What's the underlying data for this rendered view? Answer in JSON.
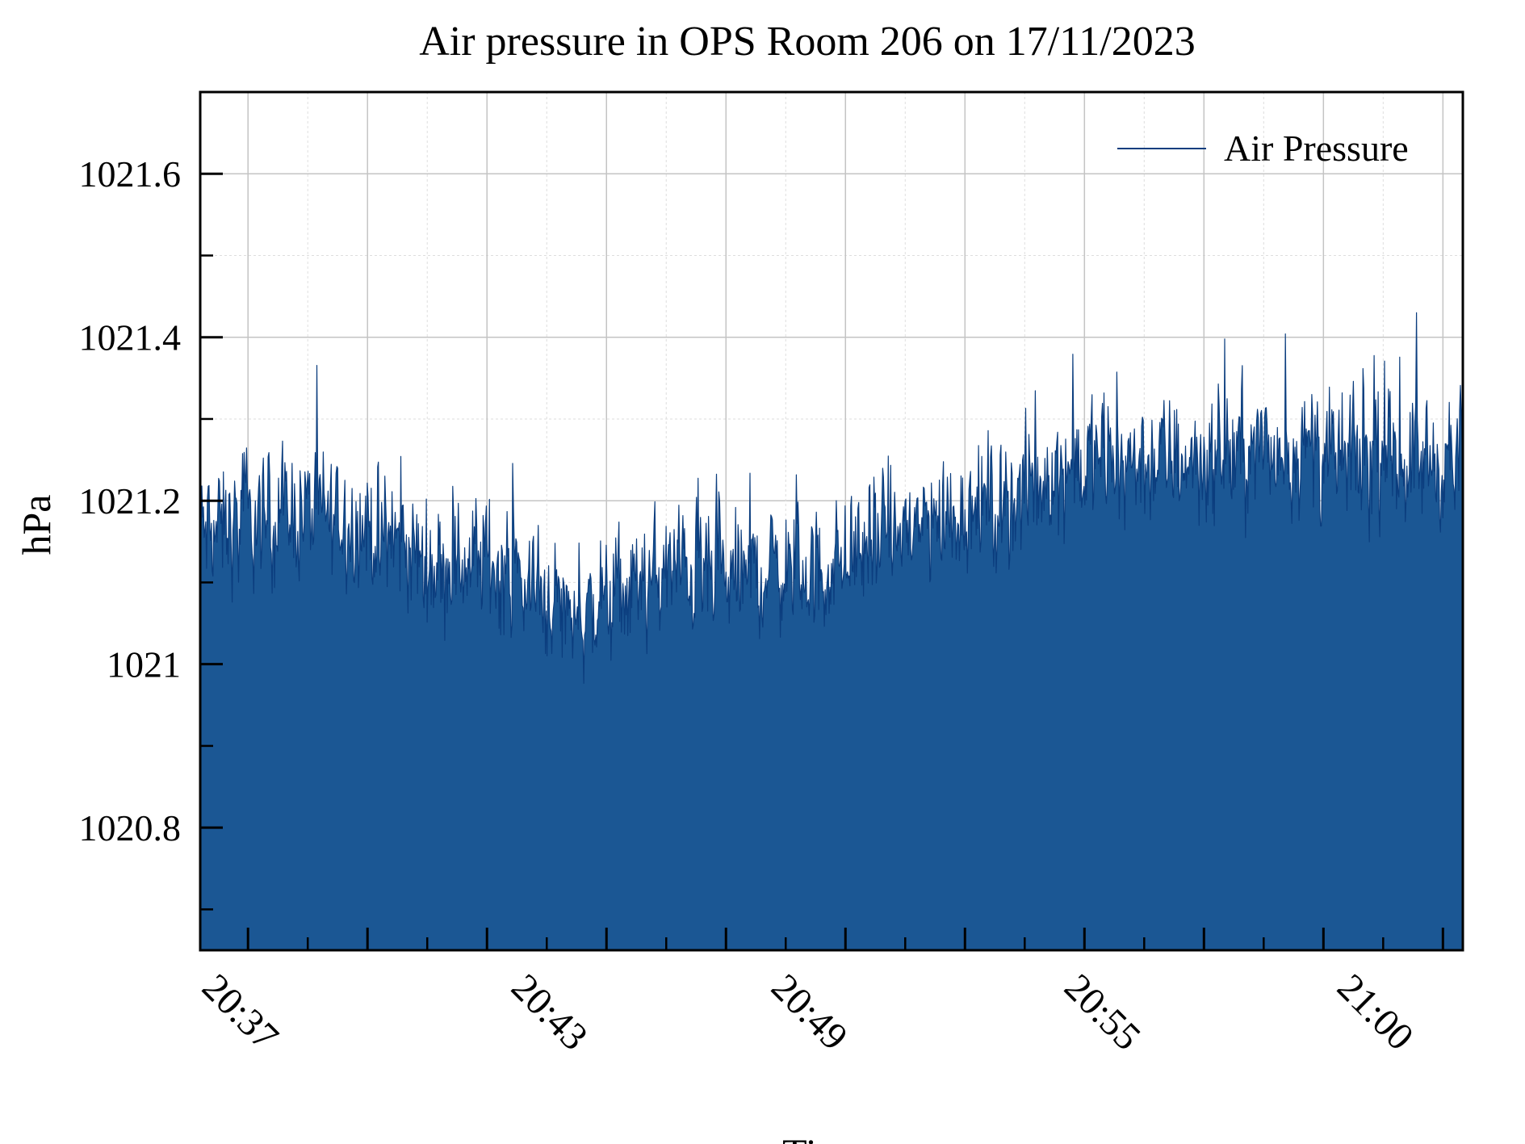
{
  "chart_data": {
    "type": "area",
    "title": "Air pressure in OPS Room 206 on 17/11/2023",
    "xlabel": "Time",
    "ylabel": "hPa",
    "legend": {
      "position": "top-right",
      "entries": [
        "Air Pressure"
      ]
    },
    "grid": true,
    "colors": {
      "series": "#0b3d7e",
      "fill": "#1b5794"
    },
    "x_range": [
      "20:36:00",
      "21:02:25"
    ],
    "ylim": [
      1020.65,
      1021.7
    ],
    "xticks": [
      "20:37",
      "20:43",
      "20:49",
      "20:55",
      "21:00"
    ],
    "yticks": [
      {
        "value": 1020.8,
        "label": "1020.8"
      },
      {
        "value": 1021.0,
        "label": "1021"
      },
      {
        "value": 1021.2,
        "label": "1021.2"
      },
      {
        "value": 1021.4,
        "label": "1021.4"
      },
      {
        "value": 1021.6,
        "label": "1021.6"
      }
    ],
    "series": [
      {
        "name": "Air Pressure",
        "x": [
          "20:36:00",
          "20:37:00",
          "20:38:00",
          "20:39:00",
          "20:40:00",
          "20:41:00",
          "20:42:00",
          "20:43:00",
          "20:44:00",
          "20:45:00",
          "20:46:00",
          "20:47:00",
          "20:48:00",
          "20:49:00",
          "20:50:00",
          "20:51:00",
          "20:52:00",
          "20:53:00",
          "20:54:00",
          "20:55:00",
          "20:56:00",
          "20:57:00",
          "20:58:00",
          "20:59:00",
          "21:00:00",
          "21:01:00",
          "21:02:00"
        ],
        "values": [
          1021.16,
          1021.17,
          1021.19,
          1021.18,
          1021.15,
          1021.12,
          1021.13,
          1021.09,
          1021.06,
          1021.09,
          1021.12,
          1021.1,
          1021.12,
          1021.11,
          1021.15,
          1021.17,
          1021.19,
          1021.2,
          1021.24,
          1021.25,
          1021.25,
          1021.25,
          1021.26,
          1021.26,
          1021.25,
          1021.25,
          1021.25
        ],
        "noise_range": [
          -0.16,
          0.18
        ]
      }
    ]
  }
}
